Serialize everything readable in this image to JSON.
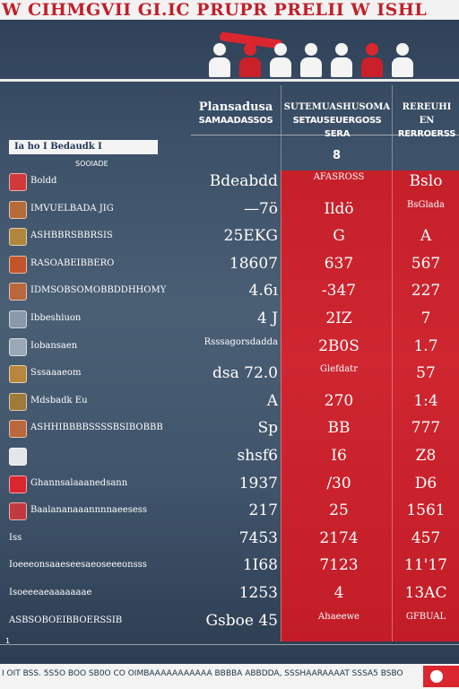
{
  "header": {
    "title": "W CIHMGVII GI.IC PRUPR PRELII W ISHL"
  },
  "columns": [
    {
      "title": "Plansadusa",
      "sub": "SAMAADASSOS"
    },
    {
      "title": "SUTEMUASHUSOMA",
      "sub": "SETAUSEUERGOSS SERA"
    },
    {
      "title": "REREUHI EN",
      "sub": "RERROERSS"
    }
  ],
  "subheader": {
    "bar": "Ia ho I Bedaudk I",
    "sub": "SOOIADE",
    "top_value": "8"
  },
  "rows": [
    {
      "icon": "flag-icon",
      "icon_color": "#cf3a3a",
      "label": "Boldd",
      "v1": "Bdeabdd",
      "v2": "AFASROSS",
      "v3": "Bslo"
    },
    {
      "icon": "shield-icon",
      "icon_color": "#b56b3a",
      "label": "IMVUELBADA JIG",
      "v1": "—7ö",
      "v2": "Ildö",
      "v3": "BsGlada"
    },
    {
      "icon": "badge-icon",
      "icon_color": "#b0863d",
      "label": "ASHBBRSBBRSIS",
      "v1": "25EKG",
      "v2": "G",
      "v3": "A"
    },
    {
      "icon": "crest-icon",
      "icon_color": "#c2542c",
      "label": "RASOABEIBBERO",
      "v1": "18607",
      "v2": "637",
      "v3": "567"
    },
    {
      "icon": "crest-icon",
      "icon_color": "#b8683c",
      "label": "IDMSOBSOMOBBDDHHOMY",
      "v1": "4.6ı",
      "v2": "-347",
      "v3": "227"
    },
    {
      "icon": "square-icon",
      "icon_color": "#8a9aaa",
      "label": "Ibbeshiuon",
      "v1": "4 J",
      "v2": "2IZ",
      "v3": "7"
    },
    {
      "icon": "square-icon",
      "icon_color": "#9aa7b5",
      "label": "Iobansaen",
      "v1": "Rsssagorsdadda",
      "v2": "2B0S",
      "v3": "1.7"
    },
    {
      "icon": "crest-icon",
      "icon_color": "#b8863d",
      "label": "Sssaaaeom",
      "v1": "dsa 72.0",
      "v2": "Glefdatr",
      "v3": "57"
    },
    {
      "icon": "badge-icon",
      "icon_color": "#a07a3a",
      "label": "Mdsbadk Eu",
      "v1": "A",
      "v2": "270",
      "v3": "1:4"
    },
    {
      "icon": "crest-icon",
      "icon_color": "#b8683c",
      "label": "ASHHIBBBBSSSSBSIBOBBB",
      "v1": "Sp",
      "v2": "BB",
      "v3": "777"
    },
    {
      "icon": "flag-icon",
      "icon_color": "#e3e6ea",
      "label": "",
      "v1": "shsf6",
      "v2": "I6",
      "v3": "Z8"
    },
    {
      "icon": "flag-icon",
      "icon_color": "#d9262f",
      "label": "Ghannsalaaanedsann",
      "v1": "1937",
      "v2": "/30",
      "v3": "D6"
    },
    {
      "icon": "flag-icon",
      "icon_color": "#c23a40",
      "label": "Baalananaaannnnaeesess",
      "v1": "217",
      "v2": "25",
      "v3": "1561"
    },
    {
      "icon": "",
      "icon_color": "",
      "label": "Iss",
      "v1": "7453",
      "v2": "2174",
      "v3": "457"
    },
    {
      "icon": "",
      "icon_color": "",
      "label": "Ioeeeonsaaeseesaeoseeeonsss",
      "v1": "1I68",
      "v2": "7123",
      "v3": "11'17"
    },
    {
      "icon": "",
      "icon_color": "",
      "label": "Isoeeeaeaaaaaaae",
      "v1": "1253",
      "v2": "4",
      "v3": "13AC"
    },
    {
      "icon": "",
      "icon_color": "",
      "label": "ASBSOBOEIBBOERSSIB",
      "v1": "Gsboe 45",
      "v2": "Ahaeewe",
      "v3": "GFBUAL"
    }
  ],
  "footer": {
    "note": "1",
    "text": "I OIT BSS. 5S5O BOO SB0O CO OIMBAAAAAAAAAAA BBBBA ABBDDA, SSSHAARAAAAT SSSA5 BSBO",
    "logo": "red-circle-logo"
  },
  "colors": {
    "accent_red": "#d9262f",
    "background_navy": "#3c5068",
    "band_white": "#f2f2f2"
  }
}
